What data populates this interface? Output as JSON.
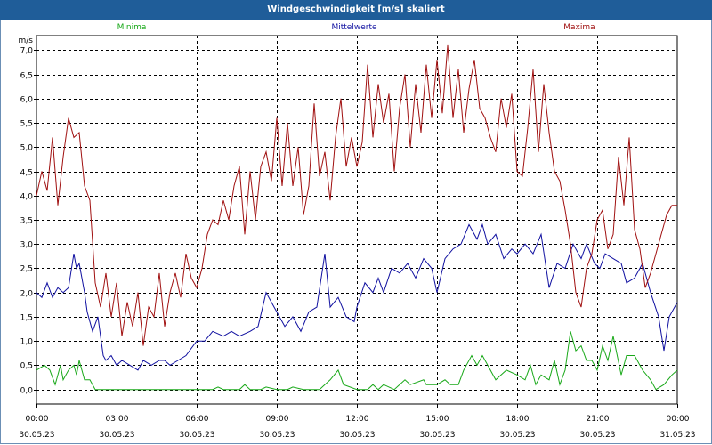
{
  "window": {
    "title": "Windgeschwindigkeit [m/s] skaliert"
  },
  "colors": {
    "title_bg": "#1f5d99",
    "grid": "#000000",
    "min": "#18a818",
    "mean": "#1010a0",
    "max": "#a01010"
  },
  "chart_data": {
    "type": "line",
    "ylabel": "m/s",
    "ylim": [
      -0.3,
      7.3
    ],
    "yticks": [
      "0,0",
      "0,5",
      "1,0",
      "1,5",
      "2,0",
      "2,5",
      "3,0",
      "3,5",
      "4,0",
      "4,5",
      "5,0",
      "5,5",
      "6,0",
      "6,5",
      "7,0"
    ],
    "ytick_values": [
      0,
      0.5,
      1,
      1.5,
      2,
      2.5,
      3,
      3.5,
      4,
      4.5,
      5,
      5.5,
      6,
      6.5,
      7
    ],
    "xlim": [
      0,
      24
    ],
    "xticks": [
      {
        "time": "00:00",
        "date": "30.05.23"
      },
      {
        "time": "03:00",
        "date": "30.05.23"
      },
      {
        "time": "06:00",
        "date": "30.05.23"
      },
      {
        "time": "09:00",
        "date": "30.05.23"
      },
      {
        "time": "12:00",
        "date": "30.05.23"
      },
      {
        "time": "15:00",
        "date": "30.05.23"
      },
      {
        "time": "18:00",
        "date": "30.05.23"
      },
      {
        "time": "21:00",
        "date": "30.05.23"
      },
      {
        "time": "00:00",
        "date": "31.05.23"
      }
    ],
    "xtick_hours": [
      0,
      3,
      6,
      9,
      12,
      15,
      18,
      21,
      24
    ],
    "series": [
      {
        "name": "Minima",
        "x": [
          0,
          0.3,
          0.5,
          0.7,
          0.9,
          1.0,
          1.2,
          1.4,
          1.5,
          1.6,
          1.8,
          2.0,
          2.2,
          2.5,
          3.0,
          4.0,
          5.0,
          6.0,
          6.6,
          6.8,
          7.0,
          7.6,
          7.8,
          8.0,
          8.4,
          8.6,
          9.0,
          9.4,
          9.6,
          10.0,
          10.6,
          10.8,
          11.0,
          11.3,
          11.5,
          12.0,
          12.4,
          12.6,
          12.8,
          13.0,
          13.4,
          13.6,
          13.8,
          14.0,
          14.5,
          14.6,
          14.8,
          15.0,
          15.3,
          15.5,
          15.8,
          16.0,
          16.3,
          16.5,
          16.7,
          16.9,
          17.2,
          17.4,
          17.6,
          18.0,
          18.3,
          18.5,
          18.7,
          18.9,
          19.2,
          19.4,
          19.6,
          19.8,
          20.0,
          20.2,
          20.4,
          20.6,
          20.8,
          21.0,
          21.2,
          21.4,
          21.6,
          21.9,
          22.1,
          22.4,
          22.7,
          23.0,
          23.2,
          23.5,
          23.8,
          24.0
        ],
        "values": [
          0.4,
          0.5,
          0.4,
          0.1,
          0.5,
          0.2,
          0.4,
          0.5,
          0.3,
          0.6,
          0.2,
          0.2,
          0.0,
          0.0,
          0.0,
          0.0,
          0.0,
          0.0,
          0.0,
          0.05,
          0.0,
          0.0,
          0.1,
          0.0,
          0.0,
          0.05,
          0.0,
          0.0,
          0.05,
          0.0,
          0.0,
          0.1,
          0.2,
          0.4,
          0.1,
          0.0,
          0.0,
          0.1,
          0.0,
          0.1,
          0.0,
          0.1,
          0.2,
          0.1,
          0.2,
          0.1,
          0.1,
          0.1,
          0.2,
          0.1,
          0.1,
          0.4,
          0.7,
          0.5,
          0.7,
          0.5,
          0.2,
          0.3,
          0.4,
          0.3,
          0.2,
          0.5,
          0.1,
          0.3,
          0.2,
          0.6,
          0.1,
          0.4,
          1.2,
          0.8,
          0.9,
          0.6,
          0.6,
          0.4,
          0.9,
          0.6,
          1.1,
          0.3,
          0.7,
          0.7,
          0.4,
          0.2,
          0.0,
          0.1,
          0.3,
          0.4
        ]
      },
      {
        "name": "Mittelwerte",
        "x": [
          0,
          0.2,
          0.4,
          0.6,
          0.8,
          1.0,
          1.2,
          1.4,
          1.5,
          1.6,
          1.8,
          1.9,
          2.1,
          2.3,
          2.5,
          2.6,
          2.8,
          3.0,
          3.2,
          3.5,
          3.8,
          4.0,
          4.3,
          4.6,
          4.8,
          5.0,
          5.3,
          5.6,
          6.0,
          6.3,
          6.6,
          7.0,
          7.3,
          7.6,
          8.0,
          8.3,
          8.6,
          8.8,
          9.0,
          9.3,
          9.6,
          9.9,
          10.2,
          10.5,
          10.8,
          11.0,
          11.3,
          11.6,
          11.9,
          12.0,
          12.3,
          12.6,
          12.8,
          13.0,
          13.3,
          13.6,
          13.9,
          14.2,
          14.5,
          14.8,
          15.0,
          15.3,
          15.6,
          15.9,
          16.2,
          16.5,
          16.7,
          16.9,
          17.2,
          17.5,
          17.8,
          18.0,
          18.3,
          18.6,
          18.9,
          19.2,
          19.5,
          19.8,
          20.1,
          20.4,
          20.6,
          20.9,
          21.1,
          21.3,
          21.6,
          21.9,
          22.1,
          22.4,
          22.7,
          23.0,
          23.3,
          23.5,
          23.7,
          24.0
        ],
        "values": [
          2.0,
          1.9,
          2.2,
          1.9,
          2.1,
          2.0,
          2.1,
          2.8,
          2.5,
          2.6,
          2.0,
          1.6,
          1.2,
          1.5,
          0.7,
          0.6,
          0.7,
          0.5,
          0.6,
          0.5,
          0.4,
          0.6,
          0.5,
          0.6,
          0.6,
          0.5,
          0.6,
          0.7,
          1.0,
          1.0,
          1.2,
          1.1,
          1.2,
          1.1,
          1.2,
          1.3,
          2.0,
          1.8,
          1.6,
          1.3,
          1.5,
          1.2,
          1.6,
          1.7,
          2.8,
          1.7,
          1.9,
          1.5,
          1.4,
          1.7,
          2.2,
          2.0,
          2.3,
          2.0,
          2.5,
          2.4,
          2.6,
          2.3,
          2.7,
          2.5,
          2.0,
          2.7,
          2.9,
          3.0,
          3.4,
          3.1,
          3.4,
          3.0,
          3.2,
          2.7,
          2.9,
          2.8,
          3.0,
          2.8,
          3.2,
          2.1,
          2.6,
          2.5,
          3.0,
          2.7,
          3.0,
          2.6,
          2.5,
          2.8,
          2.7,
          2.6,
          2.2,
          2.3,
          2.6,
          2.0,
          1.5,
          0.8,
          1.5,
          1.8
        ]
      },
      {
        "name": "Maxima",
        "x": [
          0,
          0.2,
          0.4,
          0.6,
          0.8,
          1.0,
          1.2,
          1.4,
          1.6,
          1.8,
          2.0,
          2.2,
          2.4,
          2.6,
          2.8,
          3.0,
          3.2,
          3.4,
          3.6,
          3.8,
          4.0,
          4.2,
          4.4,
          4.6,
          4.8,
          5.0,
          5.2,
          5.4,
          5.6,
          5.8,
          6.0,
          6.2,
          6.4,
          6.6,
          6.8,
          7.0,
          7.2,
          7.4,
          7.6,
          7.8,
          8.0,
          8.2,
          8.4,
          8.6,
          8.8,
          9.0,
          9.2,
          9.4,
          9.6,
          9.8,
          10.0,
          10.2,
          10.4,
          10.6,
          10.8,
          11.0,
          11.2,
          11.4,
          11.6,
          11.8,
          12.0,
          12.2,
          12.4,
          12.6,
          12.8,
          13.0,
          13.2,
          13.4,
          13.6,
          13.8,
          14.0,
          14.2,
          14.4,
          14.6,
          14.8,
          15.0,
          15.2,
          15.4,
          15.6,
          15.8,
          16.0,
          16.2,
          16.4,
          16.6,
          16.8,
          17.0,
          17.2,
          17.4,
          17.6,
          17.8,
          18.0,
          18.2,
          18.4,
          18.6,
          18.8,
          19.0,
          19.2,
          19.4,
          19.6,
          19.8,
          20.0,
          20.2,
          20.4,
          20.6,
          20.8,
          21.0,
          21.2,
          21.4,
          21.6,
          21.8,
          22.0,
          22.2,
          22.4,
          22.6,
          22.8,
          23.0,
          23.2,
          23.4,
          23.6,
          23.8,
          24.0
        ],
        "values": [
          4.0,
          4.5,
          4.1,
          5.2,
          3.8,
          4.8,
          5.6,
          5.2,
          5.3,
          4.2,
          3.9,
          2.2,
          1.7,
          2.4,
          1.5,
          2.2,
          1.1,
          1.8,
          1.3,
          2.0,
          0.9,
          1.7,
          1.5,
          2.4,
          1.3,
          2.0,
          2.4,
          1.9,
          2.8,
          2.3,
          2.1,
          2.5,
          3.2,
          3.5,
          3.4,
          3.9,
          3.5,
          4.2,
          4.6,
          3.2,
          4.5,
          3.5,
          4.6,
          4.9,
          4.3,
          5.6,
          4.2,
          5.5,
          4.2,
          5.0,
          3.6,
          4.2,
          5.9,
          4.4,
          4.9,
          3.9,
          5.2,
          6.0,
          4.6,
          5.2,
          4.6,
          5.1,
          6.7,
          5.2,
          6.3,
          5.5,
          6.1,
          4.5,
          5.8,
          6.5,
          5.0,
          6.3,
          5.3,
          6.7,
          5.6,
          6.8,
          5.7,
          7.1,
          5.6,
          6.6,
          5.3,
          6.2,
          6.8,
          5.8,
          5.6,
          5.2,
          4.9,
          6.0,
          5.4,
          6.1,
          4.5,
          4.4,
          5.4,
          6.6,
          4.9,
          6.3,
          5.3,
          4.5,
          4.3,
          3.7,
          3.0,
          2.0,
          1.7,
          2.5,
          2.8,
          3.5,
          3.7,
          2.9,
          3.2,
          4.8,
          3.8,
          5.2,
          3.3,
          2.9,
          2.1,
          2.4,
          2.8,
          3.2,
          3.6,
          3.8,
          3.8
        ]
      }
    ]
  }
}
